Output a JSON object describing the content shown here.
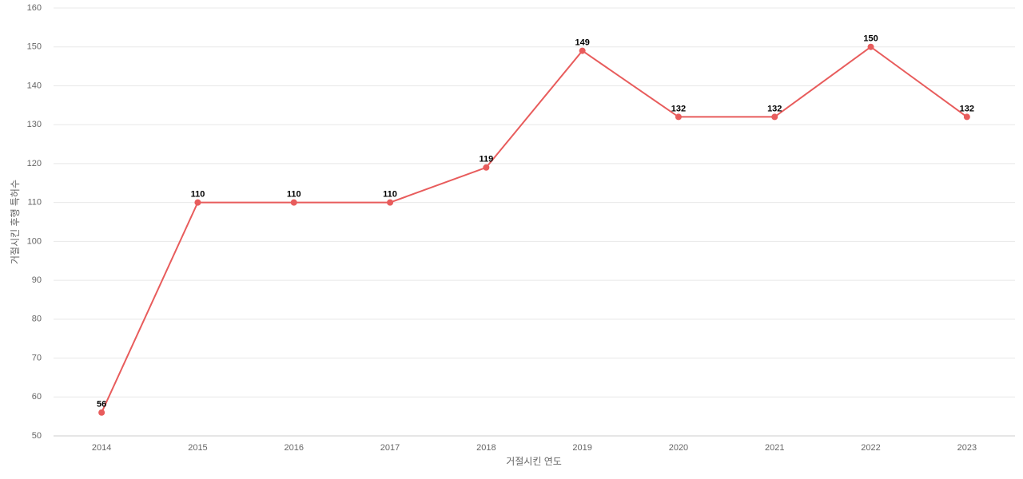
{
  "chart_data": {
    "type": "line",
    "x_label": "거절시킨 연도",
    "y_label": "거절시킨 후행 특허수",
    "categories": [
      "2014",
      "2015",
      "2016",
      "2017",
      "2018",
      "2019",
      "2020",
      "2021",
      "2022",
      "2023"
    ],
    "series": [
      {
        "color": "#e85c5c",
        "values": [
          56,
          110,
          110,
          110,
          119,
          149,
          132,
          132,
          150,
          132
        ]
      }
    ],
    "ylim": [
      50,
      160
    ],
    "yticks": [
      50,
      60,
      70,
      80,
      90,
      100,
      110,
      120,
      130,
      140,
      150,
      160
    ],
    "grid": true,
    "data_labels": true
  }
}
